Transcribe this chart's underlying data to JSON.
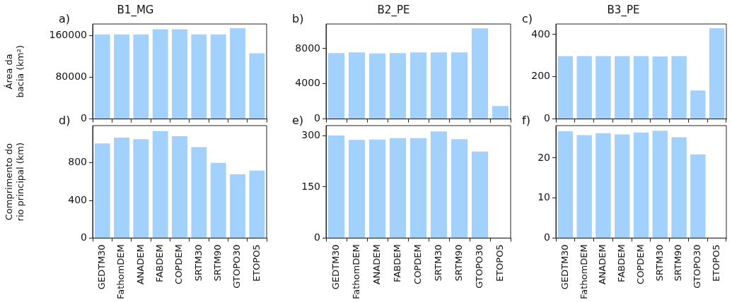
{
  "chart_data": [
    {
      "type": "bar",
      "title": "B1_MG",
      "ylabel": "Área da\nbacia (km²)",
      "annotations": [
        "a)"
      ],
      "tick_labels": "y",
      "categories": [
        null,
        null,
        null,
        null,
        null,
        null,
        null,
        null,
        null
      ],
      "values": [
        162000,
        162000,
        162000,
        172000,
        172000,
        162000,
        162000,
        174000,
        126000
      ],
      "color": "#a3d1fd",
      "ylim": [
        0,
        182000
      ],
      "yticks": [
        0,
        80000,
        160000
      ]
    },
    {
      "type": "bar",
      "title": "B2_PE",
      "annotations": [
        "b)"
      ],
      "tick_labels": "y",
      "categories": [
        null,
        null,
        null,
        null,
        null,
        null,
        null,
        null,
        null
      ],
      "values": [
        7500,
        7570,
        7460,
        7500,
        7570,
        7570,
        7570,
        10300,
        1480
      ],
      "color": "#a3d1fd",
      "ylim": [
        0,
        10800
      ],
      "yticks": [
        0,
        4000,
        8000
      ]
    },
    {
      "type": "bar",
      "title": "B3_PE",
      "annotations": [
        "c)"
      ],
      "tick_labels": "y",
      "categories": [
        null,
        null,
        null,
        null,
        null,
        null,
        null,
        null,
        null
      ],
      "values": [
        298,
        298,
        298,
        298,
        298,
        296,
        298,
        135,
        430
      ],
      "color": "#a3d1fd",
      "ylim": [
        0,
        450
      ],
      "yticks": [
        0,
        200,
        400
      ]
    },
    {
      "type": "bar",
      "ylabel": "Comprimento do\nrio principal (km)",
      "annotations": [
        "d)"
      ],
      "categories": [
        "GEDTM30",
        "FathomDEM",
        "ANADEM",
        "FABDEM",
        "COPDEM",
        "SRTM30",
        "SRTM90",
        "GTOPO30",
        "ETOPO5"
      ],
      "values": [
        1005,
        1068,
        1050,
        1136,
        1083,
        967,
        800,
        678,
        717
      ],
      "color": "#a3d1fd",
      "ylim": [
        0,
        1195
      ],
      "yticks": [
        0,
        400,
        800
      ]
    },
    {
      "type": "bar",
      "annotations": [
        "e)"
      ],
      "categories": [
        "GEDTM30",
        "FathomDEM",
        "ANADEM",
        "FABDEM",
        "COPDEM",
        "SRTM30",
        "SRTM90",
        "GTOPO30",
        "ETOPO5"
      ],
      "values": [
        301,
        288,
        289,
        293,
        293,
        313,
        290,
        254,
        null
      ],
      "color": "#a3d1fd",
      "ylim": [
        0,
        330
      ],
      "yticks": [
        0,
        150,
        300
      ]
    },
    {
      "type": "bar",
      "annotations": [
        "f)"
      ],
      "categories": [
        "GEDTM30",
        "FathomDEM",
        "ANADEM",
        "FABDEM",
        "COPDEM",
        "SRTM30",
        "SRTM90",
        "GTOPO30",
        "ETOPO5"
      ],
      "values": [
        26.7,
        25.7,
        26.2,
        25.9,
        26.4,
        26.8,
        25.2,
        20.9,
        null
      ],
      "color": "#a3d1fd",
      "ylim": [
        0,
        28.1
      ],
      "yticks": [
        0,
        10,
        20
      ]
    }
  ]
}
